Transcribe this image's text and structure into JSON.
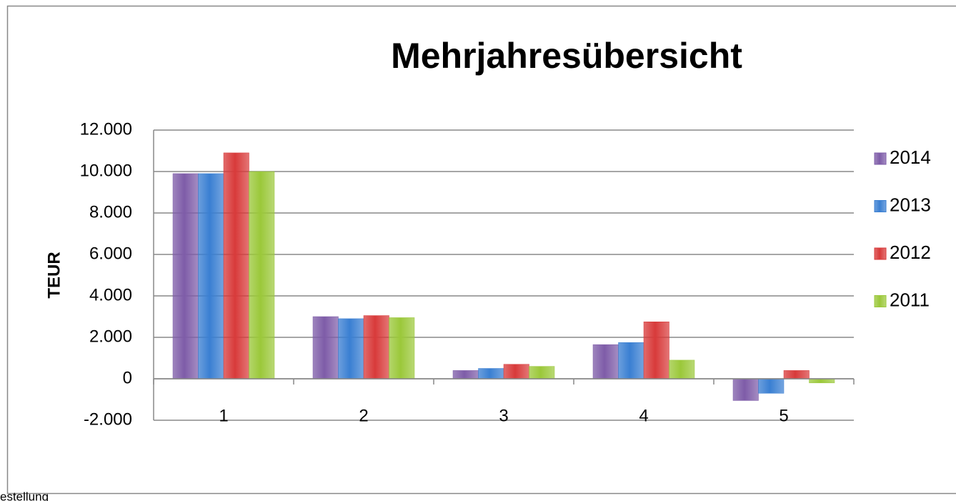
{
  "chart_data": {
    "type": "bar",
    "title": "Mehrjahresübersicht",
    "y_label": "TEUR",
    "footer": "estellung",
    "categories": [
      "1",
      "2",
      "3",
      "4",
      "5"
    ],
    "series": [
      {
        "name": "2014",
        "color": "#7e5ca8",
        "values": [
          9900,
          3000,
          400,
          1650,
          -1050
        ]
      },
      {
        "name": "2013",
        "color": "#3a7fd2",
        "values": [
          9900,
          2900,
          500,
          1750,
          -700
        ]
      },
      {
        "name": "2012",
        "color": "#d83a3a",
        "values": [
          10900,
          3050,
          700,
          2750,
          400
        ]
      },
      {
        "name": "2011",
        "color": "#9bc83a",
        "values": [
          10000,
          2950,
          600,
          900,
          -200
        ]
      }
    ],
    "ylim": [
      -2000,
      12000
    ],
    "yticks": [
      {
        "value": -2000,
        "label": "-2.000"
      },
      0,
      {
        "value": 2000,
        "label": "2.000"
      },
      {
        "value": 4000,
        "label": "4.000"
      },
      {
        "value": 6000,
        "label": "6.000"
      },
      {
        "value": 8000,
        "label": "8.000"
      },
      {
        "value": 10000,
        "label": "10.000"
      },
      {
        "value": 12000,
        "label": "12.000"
      }
    ],
    "grid": true,
    "legend": "right"
  }
}
